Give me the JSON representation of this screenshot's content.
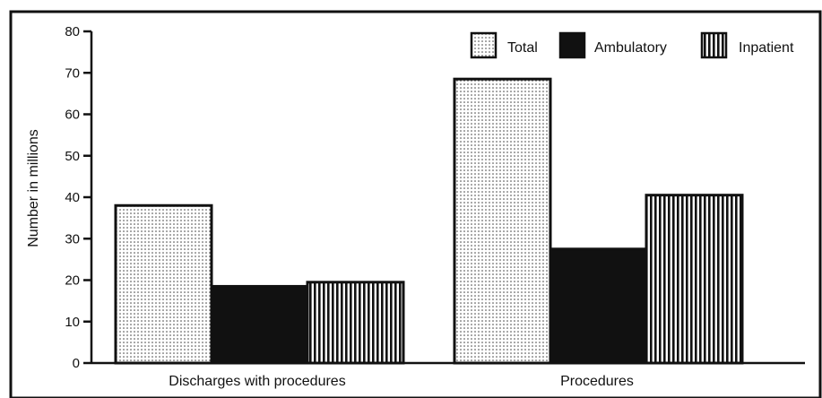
{
  "chart_data": {
    "type": "bar",
    "title": "",
    "xlabel": "",
    "ylabel": "Number in millions",
    "ylim": [
      0,
      80
    ],
    "yticks": [
      0,
      10,
      20,
      30,
      40,
      50,
      60,
      70,
      80
    ],
    "categories": [
      "Discharges with procedures",
      "Procedures"
    ],
    "series": [
      {
        "name": "Total",
        "values": [
          38,
          68.5
        ],
        "pattern": "dots",
        "color": "#ffffff"
      },
      {
        "name": "Ambulatory",
        "values": [
          18.5,
          27.5
        ],
        "pattern": "solid",
        "color": "#111111"
      },
      {
        "name": "Inpatient",
        "values": [
          19.5,
          40.5
        ],
        "pattern": "vertical-stripes",
        "color": "#ffffff"
      }
    ],
    "legend": "top-right",
    "grid": false
  }
}
